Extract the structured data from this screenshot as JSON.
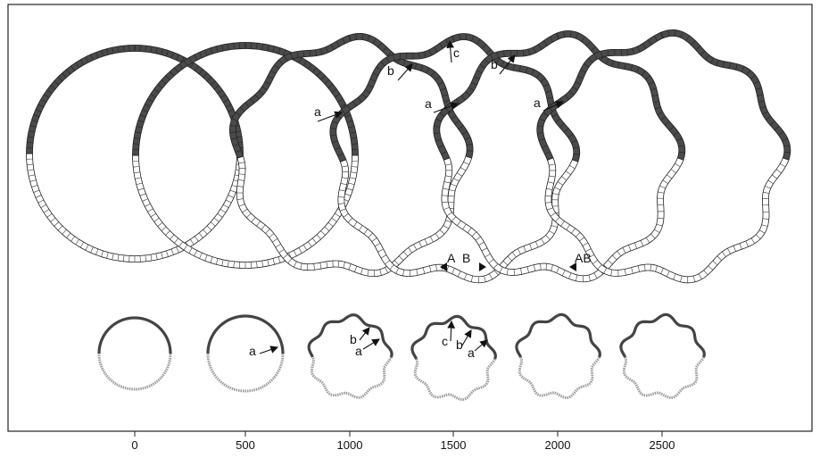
{
  "x_axis": {
    "ticks": [
      "0",
      "500",
      "1000",
      "1500",
      "2000",
      "2500"
    ]
  },
  "annotations": {
    "a": "a",
    "b": "b",
    "c": "c",
    "A": "A",
    "B": "B",
    "AB": "AB"
  },
  "colors": {
    "frame": "#222222",
    "dark_segment": "#4a4a4a",
    "light_segment": "#ffffff",
    "outline": "#222222",
    "small_dark": "#444444",
    "small_light": "#9a9a9a"
  }
}
